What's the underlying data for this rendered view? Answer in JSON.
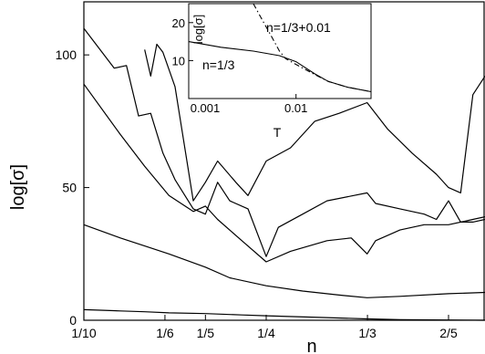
{
  "chart_data": [
    {
      "type": "line",
      "xlabel": "n",
      "ylabel": "log[σ]",
      "xlim": [
        0.1,
        0.43
      ],
      "ylim": [
        0,
        120
      ],
      "x_ticks": [
        {
          "value": 0.1,
          "label": "1/10"
        },
        {
          "value": 0.1667,
          "label": "1/6"
        },
        {
          "value": 0.2,
          "label": "1/5"
        },
        {
          "value": 0.25,
          "label": "1/4"
        },
        {
          "value": 0.3333,
          "label": "1/3"
        },
        {
          "value": 0.4,
          "label": "2/5"
        }
      ],
      "y_ticks": [
        {
          "value": 0,
          "label": "0"
        },
        {
          "value": 50,
          "label": "50"
        },
        {
          "value": 100,
          "label": "100"
        }
      ],
      "series": [
        {
          "x": [
            0.1,
            0.13,
            0.15,
            0.17,
            0.2,
            0.23,
            0.25,
            0.3,
            0.333,
            0.36,
            0.4,
            0.43
          ],
          "y": [
            4,
            3.5,
            3.2,
            2.8,
            2.5,
            2.0,
            1.7,
            1.0,
            0.5,
            0.2,
            0.1,
            0.0
          ]
        },
        {
          "x": [
            0.1,
            0.13,
            0.15,
            0.17,
            0.2,
            0.22,
            0.25,
            0.28,
            0.31,
            0.333,
            0.36,
            0.4,
            0.43
          ],
          "y": [
            36,
            31,
            28,
            25,
            20,
            16,
            13,
            11,
            9.5,
            8.5,
            9,
            10,
            10.5
          ]
        },
        {
          "x": [
            0.1,
            0.13,
            0.15,
            0.17,
            0.19,
            0.2,
            0.21,
            0.23,
            0.25,
            0.27,
            0.3,
            0.32,
            0.333,
            0.34,
            0.36,
            0.38,
            0.4,
            0.42,
            0.43
          ],
          "y": [
            89,
            70,
            58,
            47,
            41,
            43,
            38,
            30,
            22,
            26,
            30,
            31,
            25,
            30,
            34,
            36,
            36,
            38,
            39
          ]
        },
        {
          "x": [
            0.1,
            0.125,
            0.135,
            0.145,
            0.155,
            0.165,
            0.175,
            0.19,
            0.2,
            0.21,
            0.22,
            0.235,
            0.25,
            0.26,
            0.28,
            0.3,
            0.333,
            0.34,
            0.36,
            0.38,
            0.39,
            0.4,
            0.41,
            0.42,
            0.43
          ],
          "y": [
            110,
            95,
            96,
            77,
            78,
            63,
            53,
            42,
            40,
            52,
            45,
            42,
            24,
            35,
            40,
            45,
            48,
            44,
            42,
            40,
            38,
            45,
            37,
            37,
            38
          ]
        },
        {
          "x": [
            0.15,
            0.155,
            0.16,
            0.165,
            0.175,
            0.19,
            0.2,
            0.21,
            0.225,
            0.235,
            0.25,
            0.27,
            0.29,
            0.31,
            0.333,
            0.35,
            0.37,
            0.39,
            0.4,
            0.41,
            0.42,
            0.43
          ],
          "y": [
            102,
            92,
            104,
            101,
            88,
            45,
            52,
            60,
            52,
            47,
            60,
            65,
            75,
            78,
            82,
            72,
            63,
            55,
            50,
            48,
            85,
            92
          ]
        }
      ],
      "annotations": []
    },
    {
      "type": "line",
      "xlabel": "T",
      "ylabel": "log[σ]",
      "xscale": "log",
      "xlim": [
        0.001,
        0.05
      ],
      "ylim": [
        0,
        25
      ],
      "x_ticks": [
        {
          "value": 0.001,
          "label": "0.001"
        },
        {
          "value": 0.01,
          "label": "0.01"
        }
      ],
      "y_ticks": [
        {
          "value": 10,
          "label": "10"
        },
        {
          "value": 20,
          "label": "20"
        }
      ],
      "series": [
        {
          "name": "n=1/3",
          "x": [
            0.001,
            0.002,
            0.004,
            0.007,
            0.01,
            0.015,
            0.02,
            0.03,
            0.05
          ],
          "y": [
            15,
            13.5,
            12.5,
            11.3,
            9.7,
            6.5,
            4.5,
            3,
            1.8
          ]
        },
        {
          "name": "n=1/3+0.01",
          "x": [
            0.004,
            0.005,
            0.006,
            0.007,
            0.008,
            0.01,
            0.015,
            0.02,
            0.03,
            0.05
          ],
          "y": [
            25,
            20,
            16,
            12.5,
            10.5,
            9,
            6.3,
            4.5,
            3,
            1.8
          ]
        }
      ]
    }
  ]
}
